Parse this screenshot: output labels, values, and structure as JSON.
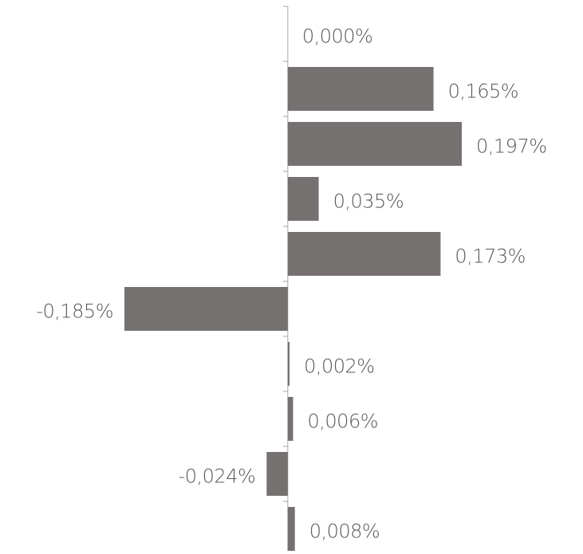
{
  "chart_data": {
    "type": "bar",
    "orientation": "horizontal",
    "categories": [
      null,
      null,
      null,
      null,
      null,
      null,
      null,
      null,
      null,
      null
    ],
    "values": [
      0.0,
      0.165,
      0.197,
      0.035,
      0.173,
      -0.185,
      0.002,
      0.006,
      -0.024,
      0.008
    ],
    "value_labels": [
      "0,000%",
      "0,165%",
      "0,197%",
      "0,035%",
      "0,173%",
      "-0,185%",
      "0,002%",
      "0,006%",
      "-0,024%",
      "0,008%"
    ],
    "color": "#767171"
  }
}
